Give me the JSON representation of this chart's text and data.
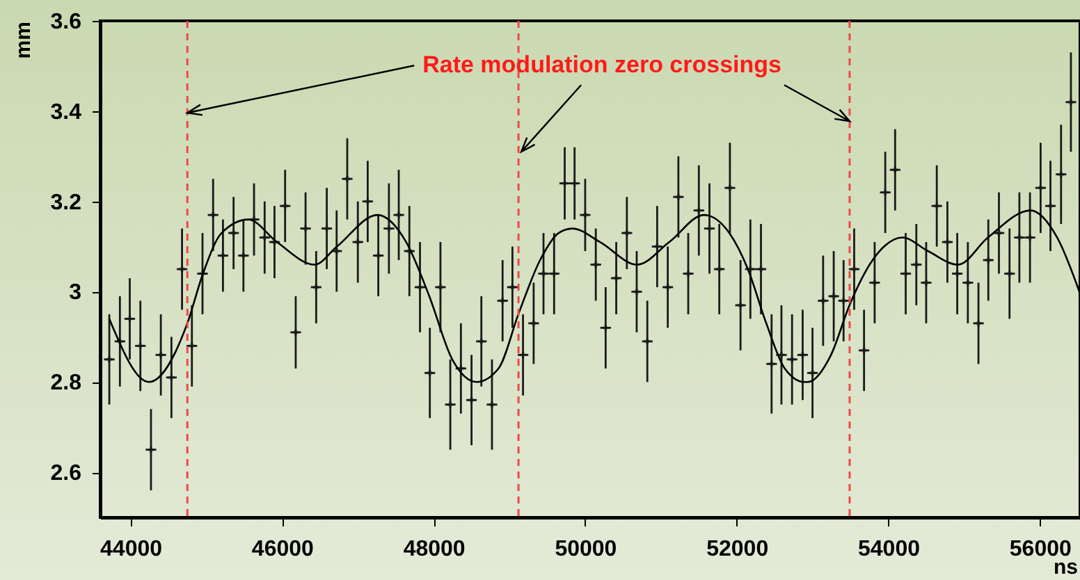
{
  "chart_data": {
    "type": "scatter",
    "xlabel": "ns",
    "ylabel": "mm",
    "xlim": [
      43600,
      56530
    ],
    "ylim": [
      2.5,
      3.6
    ],
    "xticks": [
      44000,
      46000,
      48000,
      50000,
      52000,
      54000,
      56000
    ],
    "yticks": [
      2.6,
      2.8,
      3,
      3.2,
      3.4,
      3.6
    ],
    "annotations": [
      {
        "text": "Rate modulation zero crossings",
        "x": 49120,
        "y": 3.31
      }
    ],
    "ref_lines": [
      {
        "axis": "x",
        "value": 44750,
        "color": "#f04848",
        "line_style": "dashed"
      },
      {
        "axis": "x",
        "value": 49120,
        "color": "#f04848",
        "line_style": "dashed"
      },
      {
        "axis": "x",
        "value": 53490,
        "color": "#f04848",
        "line_style": "dashed"
      }
    ],
    "series": [
      {
        "color": "#1a1a1a",
        "marker": "cross",
        "x": [
          43720,
          43860,
          43990,
          44130,
          44270,
          44400,
          44540,
          44680,
          44810,
          44950,
          45090,
          45220,
          45360,
          45490,
          45630,
          45770,
          45900,
          46040,
          46180,
          46310,
          46450,
          46590,
          46720,
          46860,
          47000,
          47130,
          47270,
          47410,
          47540,
          47680,
          47820,
          47950,
          48090,
          48220,
          48360,
          48500,
          48630,
          48770,
          48910,
          49040,
          49180,
          49320,
          49450,
          49590,
          49730,
          49860,
          50000,
          50140,
          50270,
          50410,
          50550,
          50680,
          50820,
          50950,
          51090,
          51230,
          51360,
          51500,
          51640,
          51770,
          51910,
          52050,
          52180,
          52320,
          52460,
          52590,
          52730,
          52870,
          53000,
          53140,
          53280,
          53410,
          53550,
          53680,
          53820,
          53960,
          54090,
          54230,
          54370,
          54500,
          54640,
          54780,
          54910,
          55050,
          55190,
          55320,
          55460,
          55600,
          55730,
          55870,
          56010,
          56140,
          56280,
          56410
        ],
        "values": [
          2.85,
          2.89,
          2.94,
          2.88,
          2.65,
          2.86,
          2.81,
          3.05,
          2.88,
          3.04,
          3.17,
          3.08,
          3.13,
          3.08,
          3.16,
          3.12,
          3.11,
          3.19,
          2.91,
          3.14,
          3.01,
          3.14,
          3.09,
          3.25,
          3.11,
          3.2,
          3.08,
          3.14,
          3.17,
          3.09,
          3.01,
          2.82,
          3.01,
          2.75,
          2.83,
          2.76,
          2.89,
          2.75,
          2.98,
          3.01,
          2.86,
          2.93,
          3.04,
          3.04,
          3.24,
          3.24,
          3.17,
          3.06,
          2.92,
          3.03,
          3.13,
          3.0,
          2.89,
          3.1,
          3.01,
          3.21,
          3.04,
          3.18,
          3.14,
          3.05,
          3.23,
          2.97,
          3.05,
          3.05,
          2.84,
          2.86,
          2.85,
          2.86,
          2.82,
          2.98,
          2.99,
          2.98,
          3.05,
          2.87,
          3.02,
          3.22,
          3.27,
          3.04,
          3.06,
          3.02,
          3.19,
          3.11,
          3.04,
          3.02,
          2.93,
          3.07,
          3.13,
          3.04,
          3.12,
          3.12,
          3.23,
          3.19,
          3.26,
          3.42
        ],
        "errors": [
          0.1,
          0.1,
          0.09,
          0.1,
          0.09,
          0.09,
          0.09,
          0.09,
          0.09,
          0.09,
          0.08,
          0.08,
          0.08,
          0.08,
          0.08,
          0.08,
          0.08,
          0.08,
          0.08,
          0.08,
          0.08,
          0.09,
          0.09,
          0.09,
          0.09,
          0.09,
          0.09,
          0.1,
          0.1,
          0.1,
          0.1,
          0.1,
          0.1,
          0.1,
          0.1,
          0.1,
          0.1,
          0.1,
          0.09,
          0.09,
          0.09,
          0.09,
          0.09,
          0.09,
          0.08,
          0.08,
          0.08,
          0.08,
          0.09,
          0.08,
          0.08,
          0.09,
          0.09,
          0.09,
          0.09,
          0.09,
          0.09,
          0.1,
          0.1,
          0.1,
          0.1,
          0.1,
          0.11,
          0.1,
          0.11,
          0.11,
          0.1,
          0.1,
          0.1,
          0.1,
          0.1,
          0.09,
          0.09,
          0.09,
          0.09,
          0.09,
          0.09,
          0.09,
          0.09,
          0.09,
          0.09,
          0.09,
          0.09,
          0.09,
          0.09,
          0.09,
          0.09,
          0.1,
          0.1,
          0.1,
          0.1,
          0.1,
          0.11,
          0.11
        ],
        "xerrors": [
          70,
          70,
          70,
          70,
          70,
          70,
          70,
          70,
          70,
          70,
          70,
          70,
          70,
          70,
          70,
          70,
          70,
          70,
          70,
          70,
          70,
          70,
          70,
          70,
          70,
          70,
          70,
          70,
          70,
          70,
          70,
          70,
          70,
          70,
          70,
          70,
          70,
          70,
          70,
          70,
          70,
          70,
          70,
          70,
          70,
          70,
          70,
          70,
          70,
          70,
          70,
          70,
          70,
          70,
          70,
          70,
          70,
          70,
          70,
          70,
          70,
          70,
          70,
          70,
          70,
          70,
          70,
          70,
          70,
          70,
          70,
          70,
          70,
          70,
          70,
          70,
          70,
          70,
          70,
          70,
          70,
          70,
          70,
          70,
          70,
          70,
          70,
          70,
          70,
          70,
          70,
          70,
          70,
          70
        ]
      },
      {
        "type": "line",
        "color": "#000000",
        "x": [
          43720,
          44243,
          44750,
          44956,
          45201,
          45554,
          45932,
          46431,
          46724,
          47259,
          47638,
          47943,
          48246,
          48570,
          48857,
          49118,
          49405,
          49649,
          49831,
          50197,
          50685,
          51110,
          51567,
          51902,
          52147,
          52390,
          52633,
          52890,
          52939,
          53244,
          53488,
          53793,
          54188,
          54524,
          54919,
          55315,
          55877,
          56229,
          56522
        ],
        "values": [
          2.94,
          2.8,
          2.93,
          3.04,
          3.13,
          3.16,
          3.11,
          3.06,
          3.1,
          3.17,
          3.11,
          2.99,
          2.85,
          2.8,
          2.83,
          2.95,
          3.07,
          3.13,
          3.14,
          3.11,
          3.06,
          3.11,
          3.17,
          3.13,
          3.05,
          2.93,
          2.83,
          2.8,
          2.8,
          2.86,
          2.97,
          3.07,
          3.12,
          3.09,
          3.06,
          3.12,
          3.18,
          3.12,
          3.0
        ]
      }
    ]
  }
}
